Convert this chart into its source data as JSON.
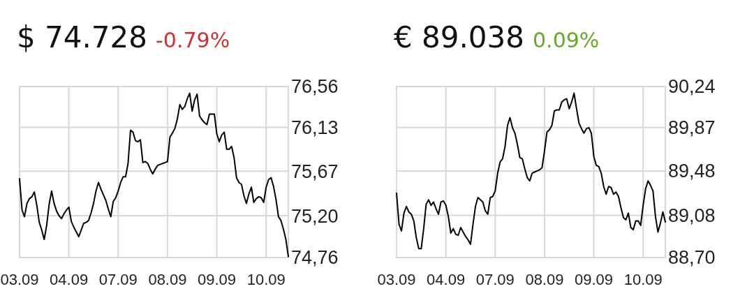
{
  "chart_data": [
    {
      "type": "line",
      "title": "$ 74.728",
      "subtitle": "-0.79%",
      "ylim": [
        74.76,
        76.56
      ],
      "grid": true,
      "yticks": [
        {
          "value": 74.76,
          "label": "74,76"
        },
        {
          "value": 75.2,
          "label": "75,20"
        },
        {
          "value": 75.67,
          "label": "75,67"
        },
        {
          "value": 76.13,
          "label": "76,13"
        },
        {
          "value": 76.56,
          "label": "76,56"
        }
      ],
      "categories": [
        "03.09",
        null,
        null,
        null,
        null,
        null,
        null,
        null,
        null,
        null,
        null,
        null,
        null,
        null,
        null,
        null,
        null,
        null,
        null,
        null,
        "04.09",
        null,
        null,
        null,
        null,
        null,
        null,
        null,
        null,
        null,
        null,
        null,
        null,
        null,
        null,
        null,
        null,
        null,
        null,
        null,
        "07.09",
        null,
        null,
        null,
        null,
        null,
        null,
        null,
        null,
        null,
        null,
        null,
        null,
        null,
        null,
        null,
        null,
        null,
        null,
        null,
        "08.09",
        null,
        null,
        null,
        null,
        null,
        null,
        null,
        null,
        null,
        null,
        null,
        null,
        null,
        null,
        null,
        null,
        null,
        null,
        null,
        "09.09",
        null,
        null,
        null,
        null,
        null,
        null,
        null,
        null,
        null,
        null,
        null,
        null,
        null,
        null,
        null,
        null,
        null,
        null,
        null,
        "10.09",
        null,
        null,
        null,
        null,
        null,
        null,
        null,
        null,
        null
      ],
      "series": [
        {
          "color": "#000000",
          "values": [
            75.59,
            75.26,
            75.19,
            75.33,
            75.38,
            75.4,
            75.45,
            75.31,
            75.13,
            75.05,
            74.95,
            75.1,
            75.32,
            75.46,
            75.33,
            75.25,
            75.2,
            75.17,
            75.22,
            75.26,
            75.29,
            75.14,
            75.08,
            75.03,
            74.98,
            75.05,
            75.12,
            75.13,
            75.15,
            75.23,
            75.33,
            75.46,
            75.55,
            75.48,
            75.42,
            75.36,
            75.27,
            75.19,
            75.35,
            75.39,
            75.46,
            75.55,
            75.61,
            75.61,
            75.75,
            76.1,
            76.08,
            75.99,
            75.98,
            76.0,
            75.76,
            75.77,
            75.75,
            75.69,
            75.64,
            75.69,
            75.73,
            75.74,
            75.75,
            75.76,
            75.77,
            76.03,
            76.07,
            76.12,
            76.22,
            76.37,
            76.32,
            76.35,
            76.43,
            76.49,
            76.3,
            76.42,
            76.48,
            76.25,
            76.21,
            76.18,
            76.16,
            76.27,
            76.27,
            76.27,
            76.06,
            75.98,
            76.05,
            76.08,
            75.9,
            75.9,
            75.93,
            75.81,
            75.6,
            75.55,
            75.53,
            75.41,
            75.33,
            75.43,
            75.5,
            75.34,
            75.38,
            75.4,
            75.39,
            75.34,
            75.5,
            75.58,
            75.6,
            75.51,
            75.37,
            75.19,
            75.15,
            75.06,
            74.95,
            74.77
          ]
        }
      ]
    },
    {
      "type": "line",
      "title": "€ 89.038",
      "subtitle": "0.09%",
      "ylim": [
        88.7,
        90.24
      ],
      "grid": true,
      "yticks": [
        {
          "value": 88.7,
          "label": "88,70"
        },
        {
          "value": 89.08,
          "label": "89,08"
        },
        {
          "value": 89.48,
          "label": "89,48"
        },
        {
          "value": 89.87,
          "label": "89,87"
        },
        {
          "value": 90.24,
          "label": "90,24"
        }
      ],
      "categories": [
        "03.09",
        null,
        null,
        null,
        null,
        null,
        null,
        null,
        null,
        null,
        null,
        null,
        null,
        null,
        null,
        null,
        null,
        null,
        null,
        null,
        "04.09",
        null,
        null,
        null,
        null,
        null,
        null,
        null,
        null,
        null,
        null,
        null,
        null,
        null,
        null,
        null,
        null,
        null,
        null,
        null,
        "07.09",
        null,
        null,
        null,
        null,
        null,
        null,
        null,
        null,
        null,
        null,
        null,
        null,
        null,
        null,
        null,
        null,
        null,
        null,
        null,
        "08.09",
        null,
        null,
        null,
        null,
        null,
        null,
        null,
        null,
        null,
        null,
        null,
        null,
        null,
        null,
        null,
        null,
        null,
        null,
        null,
        "09.09",
        null,
        null,
        null,
        null,
        null,
        null,
        null,
        null,
        null,
        null,
        null,
        null,
        null,
        null,
        null,
        null,
        null,
        null,
        null,
        "10.09",
        null,
        null,
        null,
        null,
        null,
        null,
        null,
        null,
        null
      ],
      "series": [
        {
          "color": "#000000",
          "values": [
            89.28,
            89.0,
            88.94,
            89.1,
            89.16,
            89.11,
            89.09,
            89.03,
            88.88,
            88.78,
            88.78,
            88.96,
            89.18,
            89.22,
            89.17,
            89.2,
            89.14,
            89.09,
            89.2,
            89.21,
            89.17,
            89.07,
            88.92,
            88.96,
            88.91,
            88.9,
            88.97,
            88.93,
            88.89,
            88.86,
            88.82,
            89.0,
            89.16,
            89.24,
            89.22,
            89.2,
            89.12,
            89.09,
            89.24,
            89.25,
            89.3,
            89.46,
            89.56,
            89.59,
            89.7,
            89.89,
            89.96,
            89.87,
            89.82,
            89.72,
            89.6,
            89.59,
            89.5,
            89.42,
            89.39,
            89.46,
            89.47,
            89.48,
            89.49,
            89.51,
            89.66,
            89.83,
            89.85,
            89.89,
            90.02,
            90.03,
            90.03,
            90.1,
            90.12,
            90.13,
            90.04,
            90.1,
            90.18,
            90.04,
            89.91,
            89.86,
            89.82,
            89.86,
            89.87,
            89.82,
            89.61,
            89.53,
            89.52,
            89.46,
            89.34,
            89.27,
            89.34,
            89.33,
            89.27,
            89.29,
            89.25,
            89.15,
            89.06,
            89.04,
            89.1,
            88.97,
            88.95,
            89.03,
            89.03,
            88.99,
            89.17,
            89.32,
            89.39,
            89.35,
            89.3,
            89.07,
            88.93,
            89.01,
            89.11,
            89.02
          ]
        }
      ]
    }
  ]
}
